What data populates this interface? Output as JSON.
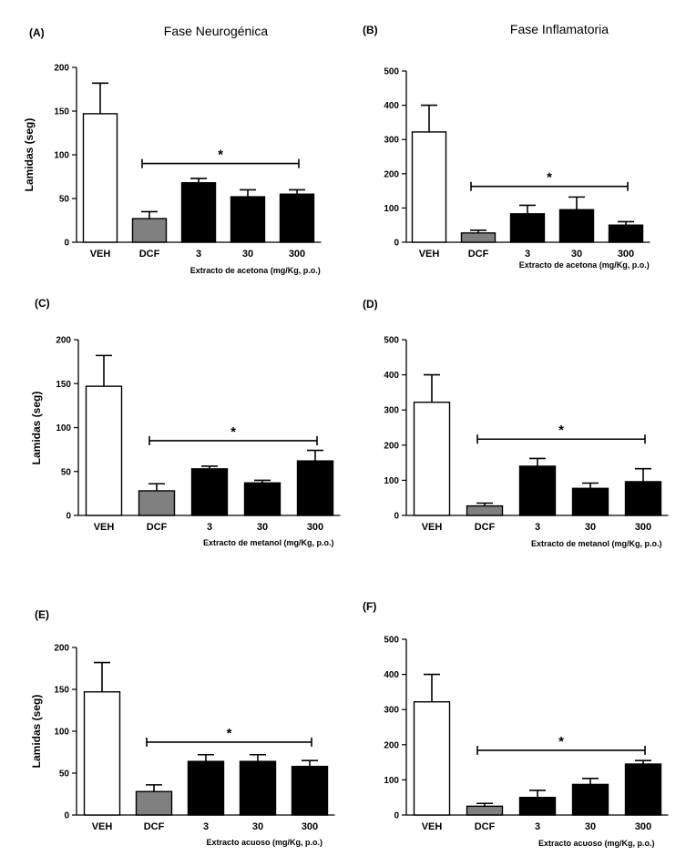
{
  "column_titles": [
    "Fase Neurogénica",
    "Fase Inflamatoria"
  ],
  "colors": {
    "veh": "#ffffff",
    "dcf": "#808080",
    "extract": "#000000",
    "stroke": "#000000"
  },
  "chart_data": [
    {
      "type": "bar",
      "panel": "(A)",
      "phase": "Fase Neurogénica",
      "categories": [
        "VEH",
        "DCF",
        "3",
        "30",
        "300"
      ],
      "values": [
        147,
        27,
        68,
        52,
        55
      ],
      "errors": [
        35,
        8,
        5,
        8,
        5
      ],
      "ylabel": "Lamidas (seg)",
      "xlabel": "Extracto de acetona (mg/Kg, p.o.)",
      "ylim": [
        0,
        200
      ],
      "yticks": [
        0,
        50,
        100,
        150,
        200
      ],
      "significance": {
        "from": "DCF",
        "to": "300",
        "height": 90,
        "label": "*"
      }
    },
    {
      "type": "bar",
      "panel": "(B)",
      "phase": "Fase Inflamatoria",
      "categories": [
        "VEH",
        "DCF",
        "3",
        "30",
        "300"
      ],
      "values": [
        322,
        27,
        83,
        95,
        50
      ],
      "errors": [
        78,
        8,
        25,
        37,
        10
      ],
      "ylabel": "",
      "xlabel": "Extracto de acetona (mg/Kg, p.o.)",
      "ylim": [
        0,
        500
      ],
      "yticks": [
        0,
        100,
        200,
        300,
        400,
        500
      ],
      "significance": {
        "from": "DCF",
        "to": "300",
        "height": 163,
        "label": "*"
      }
    },
    {
      "type": "bar",
      "panel": "(C)",
      "phase": "Fase Neurogénica",
      "categories": [
        "VEH",
        "DCF",
        "3",
        "30",
        "300"
      ],
      "values": [
        147,
        28,
        53,
        37,
        62
      ],
      "errors": [
        35,
        8,
        3,
        3,
        12
      ],
      "ylabel": "Lamidas (seg)",
      "xlabel": "Extracto de metanol (mg/Kg, p.o.)",
      "ylim": [
        0,
        200
      ],
      "yticks": [
        0,
        50,
        100,
        150,
        200
      ],
      "significance": {
        "from": "DCF",
        "to": "300",
        "height": 85,
        "label": "*"
      }
    },
    {
      "type": "bar",
      "panel": "(D)",
      "phase": "Fase Inflamatoria",
      "categories": [
        "VEH",
        "DCF",
        "3",
        "30",
        "300"
      ],
      "values": [
        322,
        27,
        140,
        77,
        96
      ],
      "errors": [
        78,
        8,
        22,
        15,
        37
      ],
      "ylabel": "",
      "xlabel": "Extracto de metanol (mg/Kg, p.o.)",
      "ylim": [
        0,
        500
      ],
      "yticks": [
        0,
        100,
        200,
        300,
        400,
        500
      ],
      "significance": {
        "from": "DCF",
        "to": "300",
        "height": 217,
        "label": "*"
      }
    },
    {
      "type": "bar",
      "panel": "(E)",
      "phase": "Fase Neurogénica",
      "categories": [
        "VEH",
        "DCF",
        "3",
        "30",
        "300"
      ],
      "values": [
        147,
        28,
        64,
        64,
        58
      ],
      "errors": [
        35,
        8,
        8,
        8,
        7
      ],
      "ylabel": "Lamidas (seg)",
      "xlabel": "Extracto acuoso (mg/Kg, p.o.)",
      "ylim": [
        0,
        200
      ],
      "yticks": [
        0,
        50,
        100,
        150,
        200
      ],
      "significance": {
        "from": "DCF",
        "to": "300",
        "height": 87,
        "label": "*"
      }
    },
    {
      "type": "bar",
      "panel": "(F)",
      "phase": "Fase Inflamatoria",
      "categories": [
        "VEH",
        "DCF",
        "3",
        "30",
        "300"
      ],
      "values": [
        322,
        25,
        50,
        87,
        145
      ],
      "errors": [
        78,
        8,
        20,
        17,
        10
      ],
      "ylabel": "",
      "xlabel": "Extracto acuoso (mg/Kg, p.o.)",
      "ylim": [
        0,
        500
      ],
      "yticks": [
        0,
        100,
        200,
        300,
        400,
        500
      ],
      "significance": {
        "from": "DCF",
        "to": "300",
        "height": 184,
        "label": "*"
      }
    }
  ]
}
